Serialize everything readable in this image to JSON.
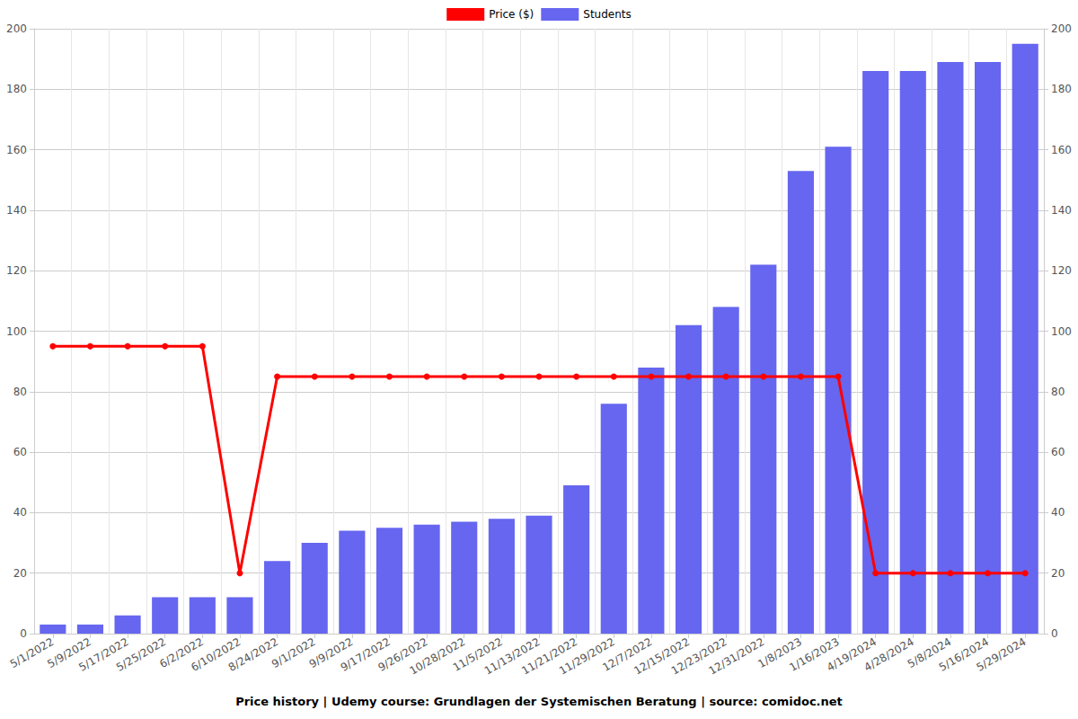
{
  "chart_data": {
    "type": "bar",
    "title": "Price history | Udemy course: Grundlagen der Systemischen Beratung | source: comidoc.net",
    "categories": [
      "5/1/2022",
      "5/9/2022",
      "5/17/2022",
      "5/25/2022",
      "6/2/2022",
      "6/10/2022",
      "8/24/2022",
      "9/1/2022",
      "9/9/2022",
      "9/17/2022",
      "9/26/2022",
      "10/28/2022",
      "11/5/2022",
      "11/13/2022",
      "11/21/2022",
      "11/29/2022",
      "12/7/2022",
      "12/15/2022",
      "12/23/2022",
      "12/31/2022",
      "1/8/2023",
      "1/16/2023",
      "4/19/2024",
      "4/28/2024",
      "5/8/2024",
      "5/16/2024",
      "5/29/2024"
    ],
    "series": [
      {
        "name": "Price ($)",
        "type": "line",
        "color": "#ff0000",
        "marker": "circle",
        "values": [
          95,
          95,
          95,
          95,
          95,
          20,
          85,
          85,
          85,
          85,
          85,
          85,
          85,
          85,
          85,
          85,
          85,
          85,
          85,
          85,
          85,
          85,
          20,
          20,
          20,
          20,
          20
        ]
      },
      {
        "name": "Students",
        "type": "bar",
        "color": "#6666f0",
        "axis": "y2",
        "values": [
          3,
          3,
          6,
          12,
          12,
          12,
          24,
          30,
          34,
          35,
          36,
          37,
          38,
          39,
          49,
          76,
          88,
          102,
          108,
          122,
          153,
          161,
          186,
          186,
          189,
          189,
          195
        ]
      }
    ],
    "ylim": [
      0,
      200
    ],
    "yticks": [
      0,
      20,
      40,
      60,
      80,
      100,
      120,
      140,
      160,
      180,
      200
    ],
    "y2lim": [
      0,
      200
    ],
    "y2ticks": [
      0,
      20,
      40,
      60,
      80,
      100,
      120,
      140,
      160,
      180,
      200
    ],
    "grid": true,
    "legend": "top"
  }
}
